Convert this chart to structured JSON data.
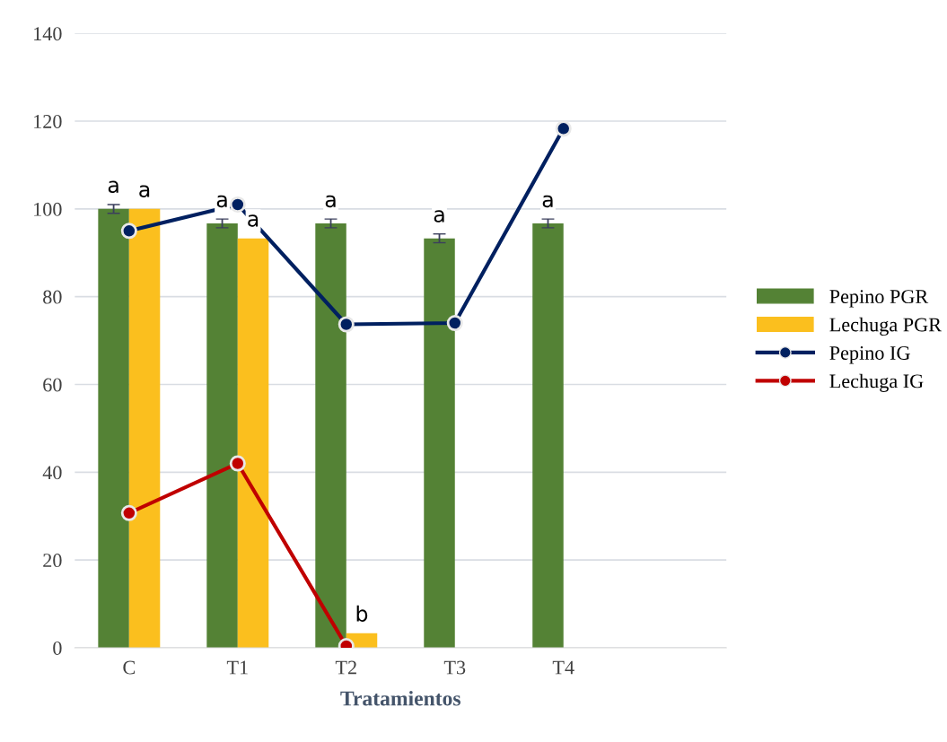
{
  "chart_data": {
    "type": "bar",
    "xlabel": "Tratamientos",
    "categories": [
      "C",
      "T1",
      "T2",
      "T3",
      "T4",
      null
    ],
    "series": [
      {
        "name": "Pepino PGR",
        "color": "#548235",
        "values": [
          100,
          96.7,
          96.7,
          93.3,
          96.7,
          null
        ],
        "errors": [
          1,
          1,
          1,
          1,
          1,
          null
        ],
        "value_labels": [
          "a",
          "a",
          "a",
          "a",
          "a",
          null
        ]
      },
      {
        "name": "Lechuga PGR",
        "color": "#fbbf1e",
        "values": [
          100,
          93.3,
          3.3,
          null,
          null,
          null
        ],
        "value_labels": [
          "a",
          "a",
          "b",
          null,
          null,
          null
        ]
      },
      {
        "name": "Pepino IG",
        "type": "line",
        "color": "#002060",
        "values": [
          95,
          101,
          73.7,
          74,
          118.3,
          null
        ]
      },
      {
        "name": "Lechuga IG",
        "type": "line",
        "color": "#c00000",
        "values": [
          30.7,
          42,
          0.4,
          null,
          null,
          null
        ]
      }
    ],
    "ylim": [
      0,
      140
    ],
    "yticks": [
      0,
      20,
      40,
      60,
      80,
      100,
      120,
      140
    ],
    "grid": "y",
    "legend": "right",
    "marker": "circle",
    "line_style": "solid"
  }
}
